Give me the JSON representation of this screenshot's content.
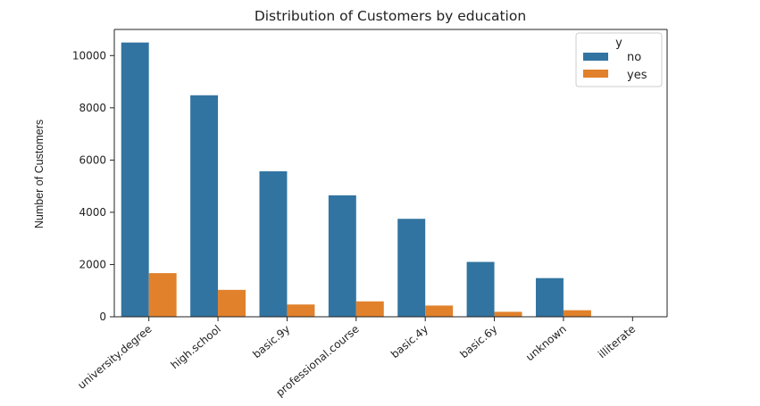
{
  "chart_data": {
    "type": "bar",
    "title": "Distribution of Customers by education",
    "xlabel": "",
    "ylabel": "Number of Customers",
    "categories": [
      "university.degree",
      "high.school",
      "basic.9y",
      "professional.course",
      "basic.4y",
      "basic.6y",
      "unknown",
      "illiterate"
    ],
    "series": [
      {
        "name": "no",
        "color": "#3274a1",
        "values": [
          10500,
          8480,
          5570,
          4650,
          3750,
          2100,
          1480,
          14
        ]
      },
      {
        "name": "yes",
        "color": "#e1812c",
        "values": [
          1670,
          1030,
          470,
          590,
          430,
          190,
          250,
          4
        ]
      }
    ],
    "ylim": [
      0,
      11000
    ],
    "yticks": [
      0,
      2000,
      4000,
      6000,
      8000,
      10000
    ],
    "legend": {
      "title": "y",
      "placement": "top-right"
    },
    "grid": false
  }
}
